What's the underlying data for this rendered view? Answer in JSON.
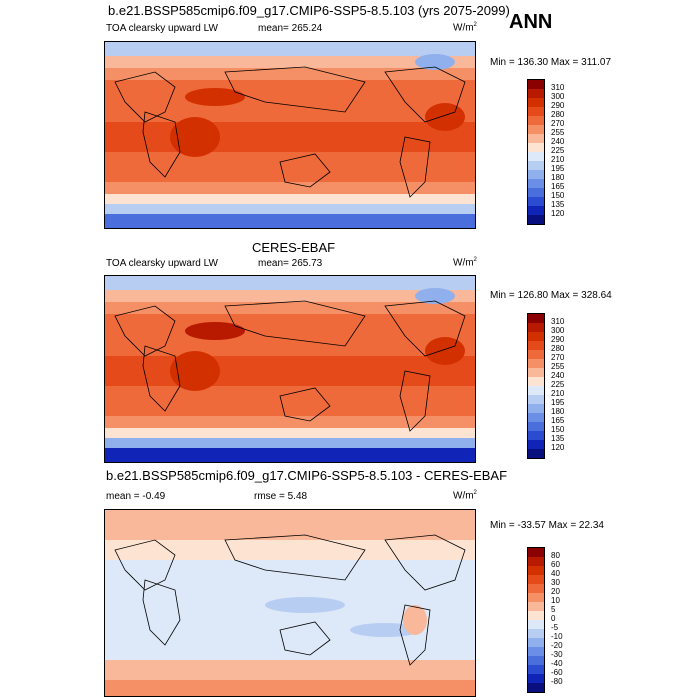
{
  "season": "ANN",
  "panel1": {
    "title": "b.e21.BSSP585cmip6.f09_g17.CMIP6-SSP5-8.5.103 (yrs 2075-2099)",
    "variable": "TOA clearsky upward LW",
    "mean": "mean= 265.24",
    "units": "W/m",
    "units_sup": "2",
    "minmax": "Min = 136.30 Max = 311.07"
  },
  "panel2": {
    "title": "CERES-EBAF",
    "variable": "TOA clearsky upward LW",
    "mean": "mean= 265.73",
    "units": "W/m",
    "units_sup": "2",
    "minmax": "Min = 126.80 Max = 328.64"
  },
  "panel3": {
    "title": "b.e21.BSSP585cmip6.f09_g17.CMIP6-SSP5-8.5.103 - CERES-EBAF",
    "mean": "mean =  -0.49",
    "rmse": "rmse =   5.48",
    "units": "W/m",
    "units_sup": "2",
    "minmax": "Min = -33.57 Max =  22.34"
  },
  "colorbar_abs": {
    "labels": [
      "310",
      "300",
      "290",
      "280",
      "270",
      "255",
      "240",
      "225",
      "210",
      "195",
      "180",
      "165",
      "150",
      "135",
      "120"
    ],
    "colors": [
      "#8b0000",
      "#b81a00",
      "#d33000",
      "#e44a1a",
      "#ef6a3a",
      "#f58f66",
      "#f9b89a",
      "#fde3d2",
      "#dde8f8",
      "#b8cdf2",
      "#8fb0ec",
      "#6b8fe6",
      "#4a6fdd",
      "#2b4bd1",
      "#1025b8",
      "#0a0f80"
    ]
  },
  "colorbar_diff": {
    "labels": [
      "80",
      "60",
      "40",
      "30",
      "20",
      "10",
      "5",
      "0",
      "-5",
      "-10",
      "-20",
      "-30",
      "-40",
      "-60",
      "-80"
    ],
    "colors": [
      "#8b0000",
      "#b81a00",
      "#d33000",
      "#e44a1a",
      "#ef6a3a",
      "#f58f66",
      "#f9b89a",
      "#fde3d2",
      "#dde8f8",
      "#b8cdf2",
      "#8fb0ec",
      "#6b8fe6",
      "#4a6fdd",
      "#2b4bd1",
      "#1025b8",
      "#0a0f80"
    ]
  }
}
